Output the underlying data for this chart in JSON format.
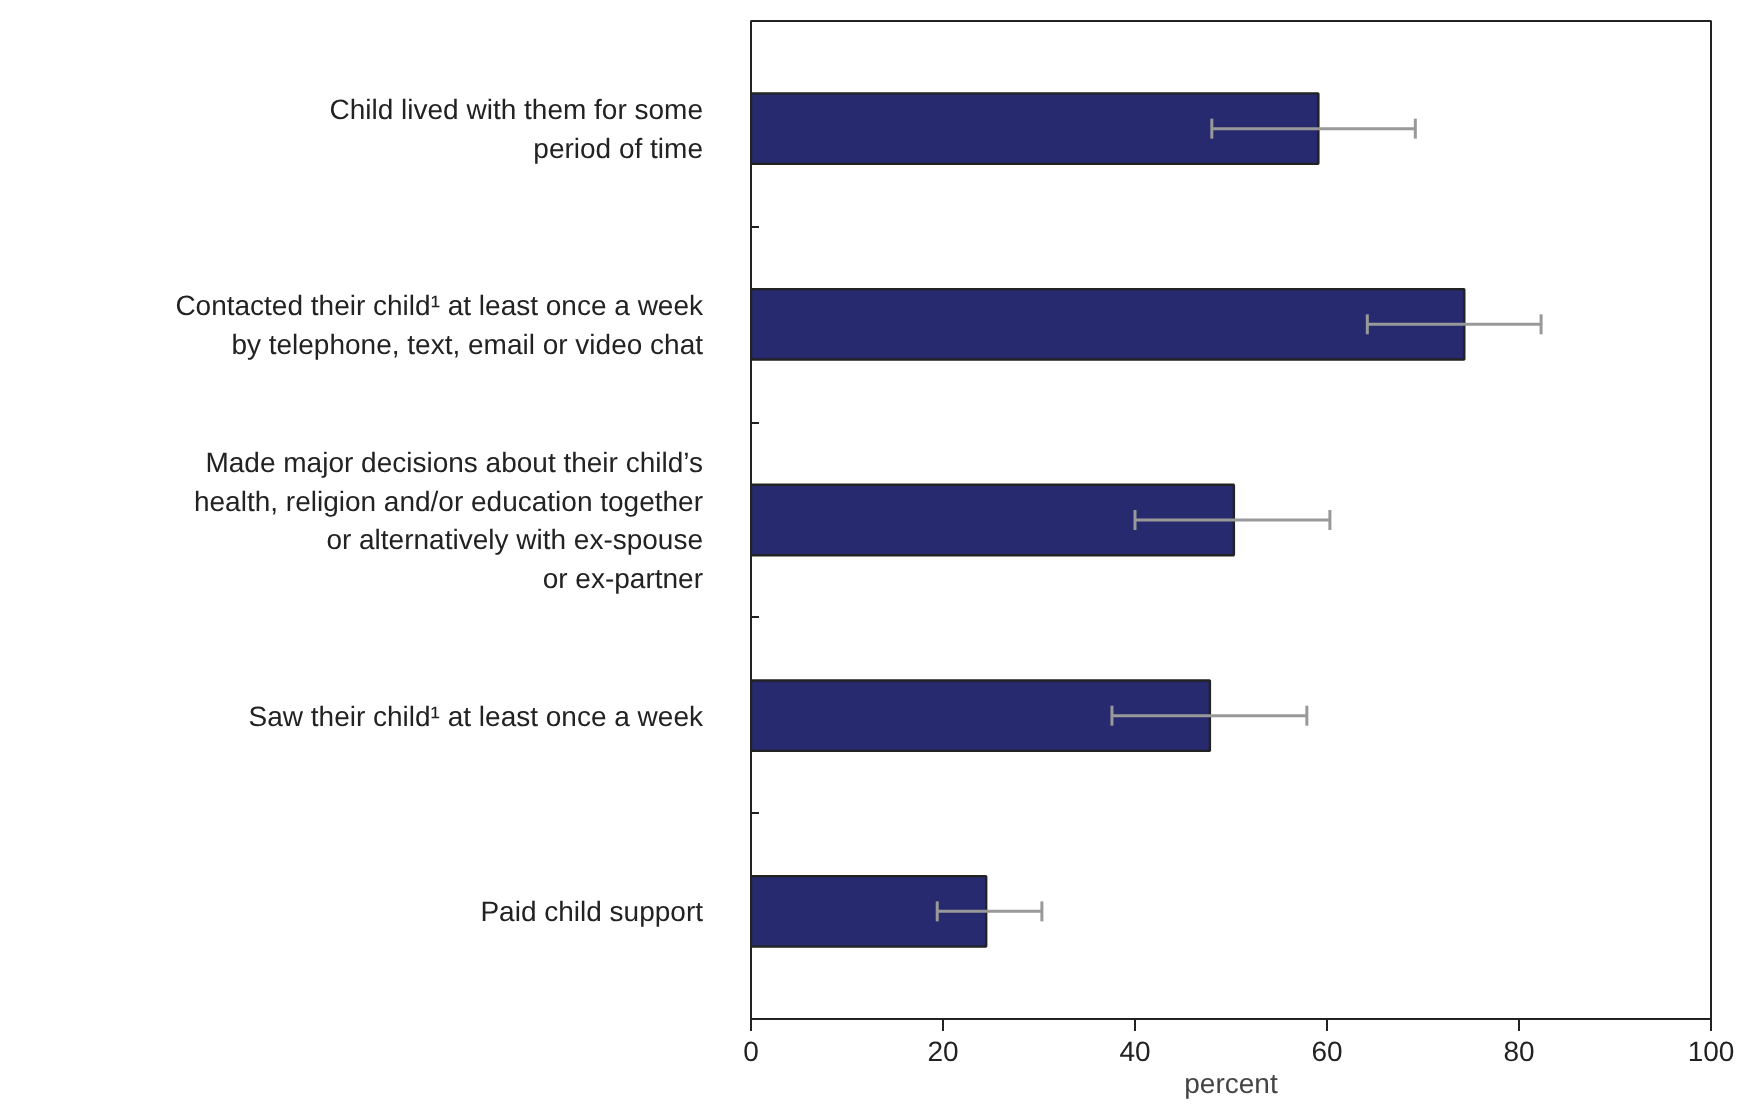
{
  "chart_data": {
    "type": "bar",
    "orientation": "horizontal",
    "xlabel": "percent",
    "categories": [
      "Child lived with them for some\nperiod of time",
      "Contacted their child¹ at least once a week\nby telephone, text, email or video chat",
      "Made major decisions about their child’s\nhealth, religion and/or education together\nor alternatively with ex-spouse\nor ex-partner",
      "Saw their child¹ at least once a week",
      "Paid child support"
    ],
    "values": [
      59.1,
      74.3,
      50.3,
      47.8,
      24.5
    ],
    "errors": [
      [
        48.0,
        69.2
      ],
      [
        64.2,
        82.3
      ],
      [
        40.0,
        60.3
      ],
      [
        37.6,
        57.9
      ],
      [
        19.4,
        30.3
      ]
    ],
    "color": "#272a6f",
    "xlim": [
      0,
      100
    ],
    "xticks": [
      0,
      20,
      40,
      60,
      80,
      100
    ],
    "grid": false
  }
}
